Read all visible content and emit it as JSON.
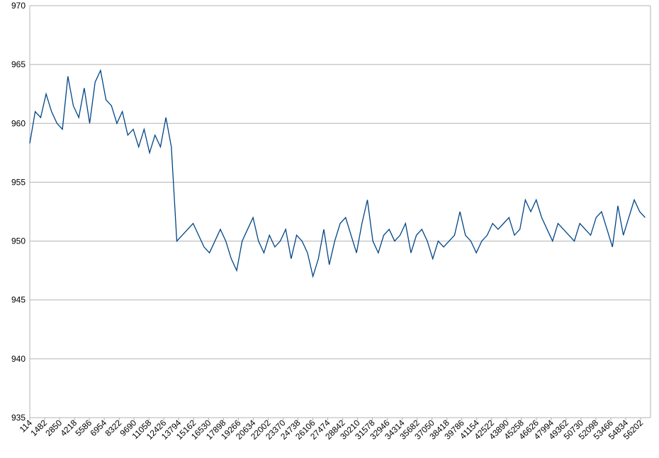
{
  "chart_data": {
    "type": "line",
    "x": [
      114,
      614,
      1114,
      1614,
      2114,
      2614,
      3114,
      3614,
      4114,
      4614,
      5114,
      5614,
      6114,
      6614,
      7114,
      7614,
      8114,
      8614,
      9114,
      9614,
      10114,
      10614,
      11114,
      11614,
      12114,
      12614,
      13114,
      13614,
      14114,
      14614,
      15114,
      15614,
      16114,
      16614,
      17114,
      17614,
      18114,
      18614,
      19114,
      19614,
      20114,
      20614,
      21114,
      21614,
      22114,
      22614,
      23114,
      23614,
      24114,
      24614,
      25114,
      25614,
      26114,
      26614,
      27114,
      27614,
      28114,
      28614,
      29114,
      29614,
      30114,
      30614,
      31114,
      31614,
      32114,
      32614,
      33114,
      33614,
      34114,
      34614,
      35114,
      35614,
      36114,
      36614,
      37114,
      37614,
      38114,
      38614,
      39114,
      39614,
      40114,
      40614,
      41114,
      41614,
      42114,
      42614,
      43114,
      43614,
      44114,
      44614,
      45114,
      45614,
      46114,
      46614,
      47114,
      47614,
      48114,
      48614,
      49114,
      49614,
      50114,
      50614,
      51114,
      51614,
      52114,
      52614,
      53114,
      53614,
      54114,
      54614,
      55114,
      55614,
      56114,
      56614
    ],
    "series": [
      {
        "color": "#004586",
        "values": [
          958.3,
          961,
          960.5,
          962.5,
          961,
          960,
          959.5,
          964,
          961.5,
          960.5,
          963,
          960,
          963.5,
          964.5,
          962,
          961.5,
          960,
          961,
          959,
          959.5,
          958,
          959.5,
          957.5,
          959,
          958,
          960.5,
          958,
          950,
          950.5,
          951,
          951.5,
          950.5,
          949.5,
          949,
          950,
          951,
          950,
          948.5,
          947.5,
          950,
          951,
          952,
          950,
          949,
          950.5,
          949.5,
          950,
          951,
          948.5,
          950.5,
          950,
          949,
          947,
          948.5,
          951,
          948,
          950,
          951.5,
          952,
          950.5,
          949,
          951.5,
          953.5,
          950,
          949,
          950.5,
          951,
          950,
          950.5,
          951.5,
          949,
          950.5,
          951,
          950,
          948.5,
          950,
          949.5,
          950,
          950.5,
          952.5,
          950.5,
          950,
          949,
          950,
          950.5,
          951.5,
          951,
          951.5,
          952,
          950.5,
          951,
          953.5,
          952.5,
          953.5,
          952,
          951,
          950,
          951.5,
          951,
          950.5,
          950,
          951.5,
          951,
          950.5,
          952,
          952.5,
          951,
          949.5,
          953,
          950.5,
          952,
          953.5,
          952.5,
          952
        ]
      }
    ],
    "xlim": [
      114,
      57107
    ],
    "xticks": [
      114,
      1482,
      2850,
      4218,
      5586,
      6954,
      8322,
      9690,
      11058,
      12426,
      13794,
      15162,
      16530,
      17898,
      19266,
      20634,
      22002,
      23370,
      24738,
      26106,
      27474,
      28842,
      30210,
      31578,
      32946,
      34314,
      35682,
      37050,
      38418,
      39786,
      41154,
      42522,
      43890,
      45258,
      46626,
      47994,
      49362,
      50730,
      52098,
      53466,
      54834,
      56202
    ],
    "ylim": [
      935,
      970
    ],
    "yticks": [
      935,
      940,
      945,
      950,
      955,
      960,
      965,
      970
    ],
    "grid": true
  }
}
